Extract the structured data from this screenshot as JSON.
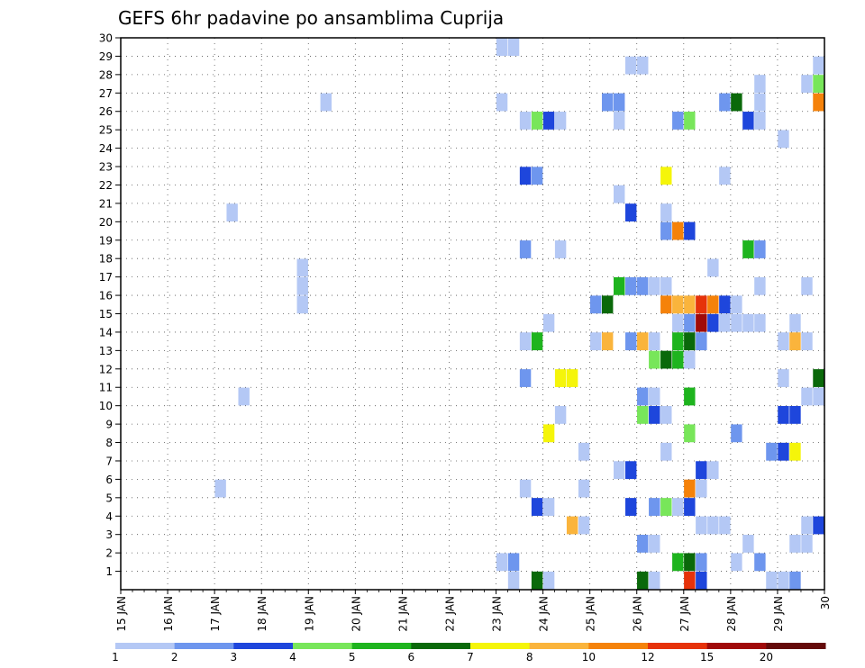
{
  "chart_data": {
    "type": "heatmap",
    "title": "GEFS 6hr padavine po ansamblima Cuprija",
    "x_tick_labels": [
      "15 JAN",
      "16 JAN",
      "17 JAN",
      "18 JAN",
      "19 JAN",
      "20 JAN",
      "21 JAN",
      "22 JAN",
      "23 JAN",
      "24 JAN",
      "25 JAN",
      "26 JAN",
      "27 JAN",
      "28 JAN",
      "29 JAN",
      "30"
    ],
    "y_tick_labels": [
      "1",
      "2",
      "3",
      "4",
      "5",
      "6",
      "7",
      "8",
      "9",
      "10",
      "11",
      "12",
      "13",
      "14",
      "15",
      "16",
      "17",
      "18",
      "19",
      "20",
      "21",
      "22",
      "23",
      "24",
      "25",
      "26",
      "27",
      "28",
      "29",
      "30"
    ],
    "xlim_steps": [
      0,
      60
    ],
    "ylim": [
      0,
      30
    ],
    "grid": true,
    "colorbar": {
      "labels": [
        "1",
        "2",
        "3",
        "4",
        "5",
        "6",
        "7",
        "8",
        "10",
        "12",
        "15",
        "20"
      ],
      "colors": [
        "#b4c8f5",
        "#6e96ee",
        "#1e46dc",
        "#78e65a",
        "#1eb41e",
        "#0a690a",
        "#f5f50a",
        "#fab43c",
        "#f5820a",
        "#e6320a",
        "#a00a0a",
        "#640a0a"
      ]
    },
    "cells_note": "each cell: [time step (6h from 15 JAN 00), ensemble member, precipitation class 1-12]",
    "cells": [
      [
        33,
        30,
        1
      ],
      [
        34,
        30,
        1
      ],
      [
        44,
        29,
        1
      ],
      [
        45,
        29,
        1
      ],
      [
        60,
        29,
        1
      ],
      [
        55,
        28,
        1
      ],
      [
        59,
        28,
        1
      ],
      [
        60,
        28,
        4
      ],
      [
        18,
        27,
        1
      ],
      [
        33,
        27,
        1
      ],
      [
        42,
        27,
        2
      ],
      [
        43,
        27,
        2
      ],
      [
        52,
        27,
        2
      ],
      [
        53,
        27,
        6
      ],
      [
        55,
        27,
        1
      ],
      [
        60,
        27,
        9
      ],
      [
        35,
        26,
        1
      ],
      [
        36,
        26,
        4
      ],
      [
        37,
        26,
        3
      ],
      [
        38,
        26,
        1
      ],
      [
        43,
        26,
        1
      ],
      [
        48,
        26,
        2
      ],
      [
        49,
        26,
        4
      ],
      [
        54,
        26,
        3
      ],
      [
        55,
        26,
        1
      ],
      [
        57,
        25,
        1
      ],
      [
        35,
        23,
        3
      ],
      [
        36,
        23,
        2
      ],
      [
        47,
        23,
        7
      ],
      [
        52,
        23,
        1
      ],
      [
        43,
        22,
        1
      ],
      [
        10,
        21,
        1
      ],
      [
        44,
        21,
        3
      ],
      [
        47,
        21,
        1
      ],
      [
        47,
        20,
        2
      ],
      [
        48,
        20,
        9
      ],
      [
        49,
        20,
        3
      ],
      [
        35,
        19,
        2
      ],
      [
        38,
        19,
        1
      ],
      [
        54,
        19,
        5
      ],
      [
        55,
        19,
        2
      ],
      [
        16,
        18,
        1
      ],
      [
        51,
        18,
        1
      ],
      [
        16,
        17,
        1
      ],
      [
        43,
        17,
        5
      ],
      [
        44,
        17,
        2
      ],
      [
        45,
        17,
        2
      ],
      [
        46,
        17,
        1
      ],
      [
        47,
        17,
        1
      ],
      [
        55,
        17,
        1
      ],
      [
        59,
        17,
        1
      ],
      [
        16,
        16,
        1
      ],
      [
        41,
        16,
        2
      ],
      [
        42,
        16,
        6
      ],
      [
        47,
        16,
        9
      ],
      [
        48,
        16,
        8
      ],
      [
        49,
        16,
        8
      ],
      [
        50,
        16,
        10
      ],
      [
        51,
        16,
        9
      ],
      [
        52,
        16,
        3
      ],
      [
        53,
        16,
        1
      ],
      [
        37,
        15,
        1
      ],
      [
        48,
        15,
        1
      ],
      [
        49,
        15,
        2
      ],
      [
        50,
        15,
        11
      ],
      [
        51,
        15,
        3
      ],
      [
        52,
        15,
        1
      ],
      [
        53,
        15,
        1
      ],
      [
        54,
        15,
        1
      ],
      [
        55,
        15,
        1
      ],
      [
        58,
        15,
        1
      ],
      [
        35,
        14,
        1
      ],
      [
        36,
        14,
        5
      ],
      [
        41,
        14,
        1
      ],
      [
        42,
        14,
        8
      ],
      [
        44,
        14,
        2
      ],
      [
        45,
        14,
        8
      ],
      [
        46,
        14,
        1
      ],
      [
        48,
        14,
        5
      ],
      [
        49,
        14,
        6
      ],
      [
        50,
        14,
        2
      ],
      [
        57,
        14,
        1
      ],
      [
        58,
        14,
        8
      ],
      [
        59,
        14,
        1
      ],
      [
        46,
        13,
        4
      ],
      [
        47,
        13,
        6
      ],
      [
        48,
        13,
        5
      ],
      [
        49,
        13,
        1
      ],
      [
        35,
        12,
        2
      ],
      [
        38,
        12,
        7
      ],
      [
        39,
        12,
        7
      ],
      [
        57,
        12,
        1
      ],
      [
        60,
        12,
        6
      ],
      [
        11,
        11,
        1
      ],
      [
        45,
        11,
        2
      ],
      [
        46,
        11,
        1
      ],
      [
        49,
        11,
        5
      ],
      [
        59,
        11,
        1
      ],
      [
        60,
        11,
        1
      ],
      [
        38,
        10,
        1
      ],
      [
        45,
        10,
        4
      ],
      [
        46,
        10,
        3
      ],
      [
        47,
        10,
        1
      ],
      [
        57,
        10,
        3
      ],
      [
        58,
        10,
        3
      ],
      [
        37,
        9,
        7
      ],
      [
        49,
        9,
        4
      ],
      [
        53,
        9,
        2
      ],
      [
        40,
        8,
        1
      ],
      [
        47,
        8,
        1
      ],
      [
        56,
        8,
        2
      ],
      [
        57,
        8,
        3
      ],
      [
        58,
        8,
        7
      ],
      [
        43,
        7,
        1
      ],
      [
        44,
        7,
        3
      ],
      [
        50,
        7,
        3
      ],
      [
        51,
        7,
        1
      ],
      [
        9,
        6,
        1
      ],
      [
        35,
        6,
        1
      ],
      [
        40,
        6,
        1
      ],
      [
        49,
        6,
        9
      ],
      [
        50,
        6,
        1
      ],
      [
        36,
        5,
        3
      ],
      [
        37,
        5,
        1
      ],
      [
        44,
        5,
        3
      ],
      [
        46,
        5,
        2
      ],
      [
        47,
        5,
        4
      ],
      [
        48,
        5,
        1
      ],
      [
        49,
        5,
        3
      ],
      [
        39,
        4,
        8
      ],
      [
        40,
        4,
        1
      ],
      [
        50,
        4,
        1
      ],
      [
        51,
        4,
        1
      ],
      [
        52,
        4,
        1
      ],
      [
        59,
        4,
        1
      ],
      [
        60,
        4,
        3
      ],
      [
        45,
        3,
        2
      ],
      [
        46,
        3,
        1
      ],
      [
        54,
        3,
        1
      ],
      [
        58,
        3,
        1
      ],
      [
        59,
        3,
        1
      ],
      [
        33,
        2,
        1
      ],
      [
        34,
        2,
        2
      ],
      [
        48,
        2,
        5
      ],
      [
        49,
        2,
        6
      ],
      [
        50,
        2,
        2
      ],
      [
        53,
        2,
        1
      ],
      [
        55,
        2,
        2
      ],
      [
        34,
        1,
        1
      ],
      [
        36,
        1,
        6
      ],
      [
        37,
        1,
        1
      ],
      [
        45,
        1,
        6
      ],
      [
        46,
        1,
        1
      ],
      [
        49,
        1,
        10
      ],
      [
        50,
        1,
        3
      ],
      [
        56,
        1,
        1
      ],
      [
        57,
        1,
        1
      ],
      [
        58,
        1,
        2
      ]
    ]
  }
}
